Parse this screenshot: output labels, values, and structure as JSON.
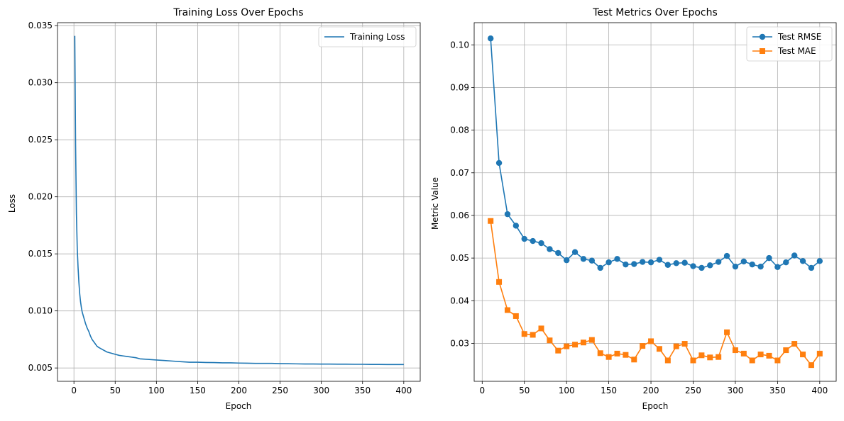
{
  "chart_data": [
    {
      "type": "line",
      "title": "Training Loss Over Epochs",
      "xlabel": "Epoch",
      "ylabel": "Loss",
      "xlim": [
        -19.95,
        419.95
      ],
      "ylim": [
        0.00383,
        0.03526
      ],
      "xticks": [
        0,
        50,
        100,
        150,
        200,
        250,
        300,
        350,
        400
      ],
      "yticks": [
        0.005,
        0.01,
        0.015,
        0.02,
        0.025,
        0.03,
        0.035
      ],
      "ytick_labels": [
        "0.005",
        "0.010",
        "0.015",
        "0.020",
        "0.025",
        "0.030",
        "0.035"
      ],
      "grid": true,
      "legend_position": "top-right",
      "series": [
        {
          "name": "Training Loss",
          "color": "#1f77b4",
          "marker": "none",
          "x": [
            1,
            2,
            3,
            4,
            5,
            6,
            7,
            8,
            9,
            10,
            12,
            14,
            16,
            18,
            20,
            22,
            25,
            28,
            30,
            35,
            40,
            45,
            50,
            55,
            60,
            65,
            70,
            75,
            80,
            90,
            100,
            110,
            120,
            130,
            140,
            150,
            160,
            170,
            180,
            190,
            200,
            210,
            220,
            230,
            240,
            250,
            260,
            270,
            280,
            290,
            300,
            310,
            320,
            330,
            340,
            350,
            360,
            370,
            380,
            390,
            400
          ],
          "y": [
            0.0341,
            0.0245,
            0.0185,
            0.0155,
            0.0138,
            0.0125,
            0.0115,
            0.0108,
            0.0103,
            0.0099,
            0.0094,
            0.0089,
            0.0085,
            0.0082,
            0.0078,
            0.0075,
            0.0072,
            0.0069,
            0.0068,
            0.0066,
            0.0064,
            0.0063,
            0.0062,
            0.0061,
            0.00605,
            0.006,
            0.00595,
            0.0059,
            0.0058,
            0.00575,
            0.0057,
            0.00565,
            0.0056,
            0.00555,
            0.0055,
            0.0055,
            0.00548,
            0.00547,
            0.00545,
            0.00545,
            0.00543,
            0.00542,
            0.0054,
            0.0054,
            0.0054,
            0.00538,
            0.00537,
            0.00536,
            0.00535,
            0.00535,
            0.00534,
            0.00534,
            0.00533,
            0.00533,
            0.00532,
            0.00532,
            0.00531,
            0.00531,
            0.0053,
            0.0053,
            0.0053
          ]
        }
      ]
    },
    {
      "type": "line",
      "title": "Test Metrics Over Epochs",
      "xlabel": "Epoch",
      "ylabel": "Metric Value",
      "xlim": [
        -9.5,
        419.5
      ],
      "ylim": [
        0.0211,
        0.1052
      ],
      "xticks": [
        0,
        50,
        100,
        150,
        200,
        250,
        300,
        350,
        400
      ],
      "yticks": [
        0.03,
        0.04,
        0.05,
        0.06,
        0.07,
        0.08,
        0.09,
        0.1
      ],
      "ytick_labels": [
        "0.03",
        "0.04",
        "0.05",
        "0.06",
        "0.07",
        "0.08",
        "0.09",
        "0.10"
      ],
      "grid": true,
      "legend_position": "top-right",
      "x": [
        10,
        20,
        30,
        40,
        50,
        60,
        70,
        80,
        90,
        100,
        110,
        120,
        130,
        140,
        150,
        160,
        170,
        180,
        190,
        200,
        210,
        220,
        230,
        240,
        250,
        260,
        270,
        280,
        290,
        300,
        310,
        320,
        330,
        340,
        350,
        360,
        370,
        380,
        390,
        400
      ],
      "series": [
        {
          "name": "Test RMSE",
          "color": "#1f77b4",
          "marker": "circle",
          "values": [
            0.1015,
            0.0723,
            0.0603,
            0.0576,
            0.0545,
            0.054,
            0.0535,
            0.0521,
            0.0512,
            0.0495,
            0.0514,
            0.0498,
            0.0494,
            0.0477,
            0.049,
            0.0498,
            0.0485,
            0.0486,
            0.0491,
            0.049,
            0.0496,
            0.0484,
            0.0488,
            0.0489,
            0.0481,
            0.0477,
            0.0483,
            0.0491,
            0.0505,
            0.048,
            0.0492,
            0.0485,
            0.048,
            0.05,
            0.0479,
            0.049,
            0.0506,
            0.0493,
            0.0477,
            0.0493
          ]
        },
        {
          "name": "Test MAE",
          "color": "#ff7f0e",
          "marker": "square",
          "values": [
            0.0587,
            0.0444,
            0.0378,
            0.0364,
            0.0322,
            0.032,
            0.0335,
            0.0307,
            0.0283,
            0.0293,
            0.0297,
            0.0302,
            0.0308,
            0.0277,
            0.0268,
            0.0276,
            0.0273,
            0.0262,
            0.0294,
            0.0305,
            0.0287,
            0.026,
            0.0293,
            0.0299,
            0.026,
            0.0272,
            0.0267,
            0.0268,
            0.0326,
            0.0284,
            0.0276,
            0.026,
            0.0274,
            0.0271,
            0.026,
            0.0284,
            0.0299,
            0.0274,
            0.0249,
            0.0276
          ]
        }
      ]
    }
  ]
}
